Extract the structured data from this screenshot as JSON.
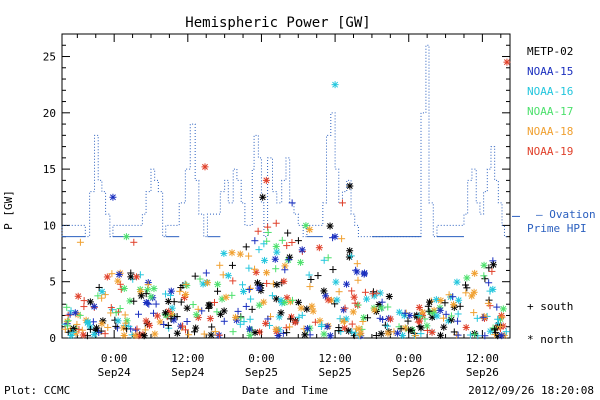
{
  "chart_data": {
    "type": "scatter",
    "title": "Hemispheric Power [GW]",
    "xlabel": "Date and Time",
    "ylabel": "P [GW]",
    "ylim": [
      0,
      27
    ],
    "xlim": [
      -8.5,
      22.5
    ],
    "yticks": [
      0,
      5,
      10,
      15,
      20,
      25
    ],
    "xticks": [
      {
        "h": 0,
        "label1": "0:00",
        "label2": "Sep24"
      },
      {
        "h": 12,
        "label1": "12:00",
        "label2": "Sep24"
      },
      {
        "h": 24,
        "label1": "0:00",
        "label2": "Sep25"
      },
      {
        "h": 36,
        "label1": "12:00",
        "label2": "Sep25"
      },
      {
        "h": 48,
        "label1": "0:00",
        "label2": "Sep26"
      },
      {
        "h": 60,
        "label1": "12:00",
        "label2": "Sep26"
      }
    ],
    "x_unit_note": "",
    "legend": [
      {
        "name": "METP-02",
        "color": "#000000"
      },
      {
        "name": "NOAA-15",
        "color": "#1a2fbf"
      },
      {
        "name": "NOAA-16",
        "color": "#22c6dd"
      },
      {
        "name": "NOAA-17",
        "color": "#4ce06c"
      },
      {
        "name": "NOAA-18",
        "color": "#f0a030"
      },
      {
        "name": "NOAA-19",
        "color": "#e0402a"
      }
    ],
    "ovation": {
      "name": "— Ovation Prime HPI",
      "name_line1": "— Ovation",
      "name_line2": "Prime HPI",
      "color": "#2a5fbf",
      "steps": [
        [
          -8.5,
          9
        ],
        [
          -4.7,
          10
        ],
        [
          -4.0,
          9
        ],
        [
          -3.2,
          13
        ],
        [
          -2.6,
          18
        ],
        [
          -2.0,
          14
        ],
        [
          -1.4,
          13
        ],
        [
          -0.7,
          11
        ],
        [
          -0.2,
          9
        ],
        [
          4.6,
          10
        ],
        [
          5.2,
          11
        ],
        [
          6.0,
          13
        ],
        [
          6.6,
          15
        ],
        [
          7.2,
          14
        ],
        [
          7.9,
          13
        ],
        [
          8.4,
          9
        ],
        [
          10.6,
          10
        ],
        [
          11.6,
          12
        ],
        [
          12.4,
          15
        ],
        [
          13.2,
          19
        ],
        [
          13.8,
          14
        ],
        [
          14.6,
          11
        ],
        [
          15.2,
          9
        ],
        [
          17.3,
          11
        ],
        [
          18.0,
          13
        ],
        [
          18.6,
          14
        ],
        [
          19.4,
          12
        ],
        [
          20.0,
          15
        ],
        [
          20.7,
          14
        ],
        [
          21.3,
          12
        ],
        [
          22.0,
          10
        ],
        [
          22.5,
          10
        ],
        [
          22.8,
          15
        ],
        [
          23.5,
          18
        ],
        [
          24.0,
          16
        ],
        [
          24.4,
          12
        ],
        [
          25.0,
          9
        ],
        [
          25.8,
          16
        ],
        [
          26.5,
          13
        ],
        [
          27.3,
          12
        ],
        [
          28.0,
          14
        ],
        [
          28.6,
          16
        ],
        [
          29.3,
          12
        ],
        [
          30.0,
          11
        ],
        [
          30.8,
          10
        ],
        [
          31.4,
          9
        ],
        [
          34.0,
          10
        ],
        [
          34.6,
          12
        ],
        [
          35.3,
          18
        ],
        [
          36.0,
          20
        ],
        [
          36.6,
          15
        ],
        [
          37.2,
          12
        ],
        [
          37.9,
          13
        ],
        [
          38.6,
          14
        ],
        [
          39.2,
          11
        ],
        [
          39.8,
          10
        ],
        [
          40.6,
          9
        ],
        [
          42.0,
          9
        ],
        [
          44.0,
          9
        ],
        [
          50.0,
          9
        ],
        [
          50.8,
          20
        ],
        [
          51.3,
          26
        ],
        [
          52.0,
          12
        ],
        [
          52.6,
          9
        ],
        [
          57.0,
          10
        ],
        [
          57.6,
          11
        ],
        [
          58.3,
          14
        ],
        [
          59.0,
          15
        ],
        [
          59.6,
          12
        ],
        [
          60.2,
          11
        ],
        [
          60.8,
          13
        ],
        [
          61.4,
          15
        ],
        [
          62.0,
          17
        ],
        [
          62.6,
          14
        ],
        [
          63.2,
          12
        ],
        [
          63.6,
          10
        ],
        [
          64.2,
          9
        ]
      ]
    },
    "series_markers": [
      {
        "name": "south",
        "marker": "+"
      },
      {
        "name": "north",
        "marker": "*"
      }
    ]
  },
  "footer": {
    "left": "Plot: CCMC",
    "right": "2012/09/26 18:20:08"
  },
  "marker_legend": {
    "south": "+ south",
    "north": "* north"
  }
}
